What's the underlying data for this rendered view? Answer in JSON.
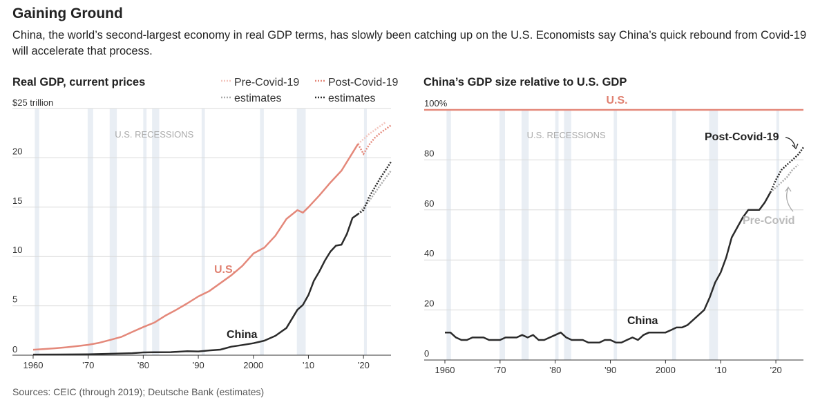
{
  "title": "Gaining Ground",
  "subtitle": "China, the world’s second-largest economy in real GDP terms, has slowly been catching up on the U.S. Economists say China’s quick rebound from Covid-19 will accelerate that process.",
  "source": "Sources: CEIC (through 2019); Deutsche Bank (estimates)",
  "colors": {
    "us": "#e4887a",
    "us_pre": "#f3c5bd",
    "china": "#2b2b2b",
    "china_pre": "#aaaaaa",
    "recession": "#e9eef4",
    "grid": "#d9d9d9"
  },
  "recession_label": "U.S. RECESSIONS",
  "recessions": [
    [
      1960.3,
      1961.1
    ],
    [
      1969.9,
      1970.9
    ],
    [
      1973.9,
      1975.2
    ],
    [
      1980.0,
      1980.6
    ],
    [
      1981.6,
      1982.9
    ],
    [
      1990.6,
      1991.2
    ],
    [
      2001.2,
      2001.9
    ],
    [
      2007.9,
      2009.5
    ],
    [
      2020.1,
      2020.5
    ]
  ],
  "chart_data": [
    {
      "type": "line",
      "title": "Real GDP, current prices",
      "unit_label": "$25 trillion",
      "ylim": [
        0,
        25
      ],
      "xlim": [
        1959,
        2025
      ],
      "yticks": [
        0,
        5,
        10,
        15,
        20
      ],
      "xticks": [
        {
          "v": 1960,
          "label": "1960"
        },
        {
          "v": 1970,
          "label": "’70"
        },
        {
          "v": 1980,
          "label": "’80"
        },
        {
          "v": 1990,
          "label": "’90"
        },
        {
          "v": 2000,
          "label": "2000"
        },
        {
          "v": 2010,
          "label": "’10"
        },
        {
          "v": 2020,
          "label": "’20"
        }
      ],
      "grid": true,
      "legend": [
        {
          "name": "Pre-Covid-19\nestimates",
          "style": "dotted-light"
        },
        {
          "name": "Post-Covid-19\nestimates",
          "style": "dotted-dark"
        }
      ],
      "labels": {
        "us": "U.S.",
        "china": "China"
      },
      "series": [
        {
          "name": "U.S.",
          "x": [
            1960,
            1962,
            1964,
            1966,
            1968,
            1970,
            1972,
            1974,
            1976,
            1978,
            1980,
            1982,
            1984,
            1986,
            1988,
            1990,
            1992,
            1994,
            1996,
            1998,
            2000,
            2002,
            2004,
            2006,
            2008,
            2009,
            2010,
            2012,
            2014,
            2016,
            2018,
            2019
          ],
          "y": [
            0.55,
            0.62,
            0.7,
            0.8,
            0.92,
            1.05,
            1.25,
            1.55,
            1.85,
            2.35,
            2.85,
            3.3,
            4.0,
            4.6,
            5.25,
            5.95,
            6.5,
            7.3,
            8.1,
            9.05,
            10.3,
            10.9,
            12.1,
            13.8,
            14.7,
            14.45,
            15.0,
            16.2,
            17.5,
            18.7,
            20.5,
            21.4
          ]
        },
        {
          "name": "U.S. pre-Covid-19 estimates",
          "x": [
            2019,
            2020,
            2021,
            2022,
            2023,
            2024
          ],
          "y": [
            21.4,
            21.9,
            22.4,
            22.8,
            23.2,
            23.6
          ]
        },
        {
          "name": "U.S. post-Covid-19 estimates",
          "x": [
            2019,
            2020,
            2021,
            2022,
            2023,
            2024,
            2025
          ],
          "y": [
            21.4,
            20.4,
            21.3,
            22.0,
            22.5,
            22.9,
            23.3
          ]
        },
        {
          "name": "China",
          "x": [
            1960,
            1965,
            1970,
            1975,
            1978,
            1980,
            1982,
            1985,
            1988,
            1990,
            1992,
            1994,
            1996,
            1998,
            2000,
            2002,
            2004,
            2006,
            2008,
            2009,
            2010,
            2011,
            2012,
            2013,
            2014,
            2015,
            2016,
            2017,
            2018,
            2019
          ],
          "y": [
            0.06,
            0.07,
            0.09,
            0.16,
            0.2,
            0.28,
            0.3,
            0.31,
            0.4,
            0.38,
            0.48,
            0.56,
            0.86,
            1.03,
            1.21,
            1.47,
            1.96,
            2.75,
            4.6,
            5.1,
            6.1,
            7.55,
            8.5,
            9.6,
            10.5,
            11.1,
            11.2,
            12.3,
            13.9,
            14.3
          ]
        },
        {
          "name": "China pre-Covid-19 estimates",
          "x": [
            2019,
            2021,
            2023,
            2025
          ],
          "y": [
            14.3,
            15.6,
            17.2,
            18.7
          ]
        },
        {
          "name": "China post-Covid-19 estimates",
          "x": [
            2019,
            2020,
            2021,
            2023,
            2025
          ],
          "y": [
            14.3,
            14.7,
            16.0,
            17.9,
            19.6
          ]
        }
      ]
    },
    {
      "type": "line",
      "title": "China’s GDP size relative to U.S. GDP",
      "ylim": [
        0,
        100
      ],
      "xlim": [
        1959,
        2025
      ],
      "yticks": [
        {
          "v": 0,
          "label": "0"
        },
        {
          "v": 20,
          "label": "20"
        },
        {
          "v": 40,
          "label": "40"
        },
        {
          "v": 60,
          "label": "60"
        },
        {
          "v": 80,
          "label": "80"
        },
        {
          "v": 100,
          "label": "100%"
        }
      ],
      "xticks": [
        {
          "v": 1960,
          "label": "1960"
        },
        {
          "v": 1970,
          "label": "’70"
        },
        {
          "v": 1980,
          "label": "’80"
        },
        {
          "v": 1990,
          "label": "’90"
        },
        {
          "v": 2000,
          "label": "2000"
        },
        {
          "v": 2010,
          "label": "’10"
        },
        {
          "v": 2020,
          "label": "’20"
        }
      ],
      "grid": true,
      "labels": {
        "us": "U.S.",
        "china": "China",
        "post": "Post-Covid-19",
        "pre": "Pre-Covid"
      },
      "reference_line": {
        "name": "U.S.",
        "value": 100
      },
      "series": [
        {
          "name": "China",
          "x": [
            1960,
            1961,
            1962,
            1963,
            1964,
            1965,
            1966,
            1967,
            1968,
            1969,
            1970,
            1971,
            1972,
            1973,
            1974,
            1975,
            1976,
            1977,
            1978,
            1979,
            1980,
            1981,
            1982,
            1983,
            1984,
            1985,
            1986,
            1987,
            1988,
            1989,
            1990,
            1991,
            1992,
            1993,
            1994,
            1995,
            1996,
            1997,
            1998,
            1999,
            2000,
            2001,
            2002,
            2003,
            2004,
            2005,
            2006,
            2007,
            2008,
            2009,
            2010,
            2011,
            2012,
            2013,
            2014,
            2015,
            2016,
            2017,
            2018,
            2019
          ],
          "y": [
            11,
            11,
            9,
            8,
            8,
            9,
            9,
            9,
            8,
            8,
            8,
            9,
            9,
            9,
            10,
            9,
            10,
            8,
            8,
            9,
            10,
            11,
            9,
            8,
            8,
            8,
            7,
            7,
            7,
            8,
            8,
            7,
            7,
            8,
            9,
            8,
            10,
            11,
            11,
            11,
            11,
            12,
            13,
            13,
            14,
            16,
            18,
            20,
            25,
            31,
            35,
            41,
            49,
            53,
            57,
            60,
            60,
            60,
            63,
            67
          ]
        },
        {
          "name": "Pre-Covid",
          "x": [
            2019,
            2020,
            2021,
            2022,
            2023,
            2024
          ],
          "y": [
            67,
            69,
            71,
            73,
            76,
            78
          ]
        },
        {
          "name": "Post-Covid-19",
          "x": [
            2019,
            2020,
            2021,
            2022,
            2023,
            2024,
            2025
          ],
          "y": [
            67,
            72,
            76,
            78,
            80,
            82,
            85
          ]
        }
      ]
    }
  ]
}
